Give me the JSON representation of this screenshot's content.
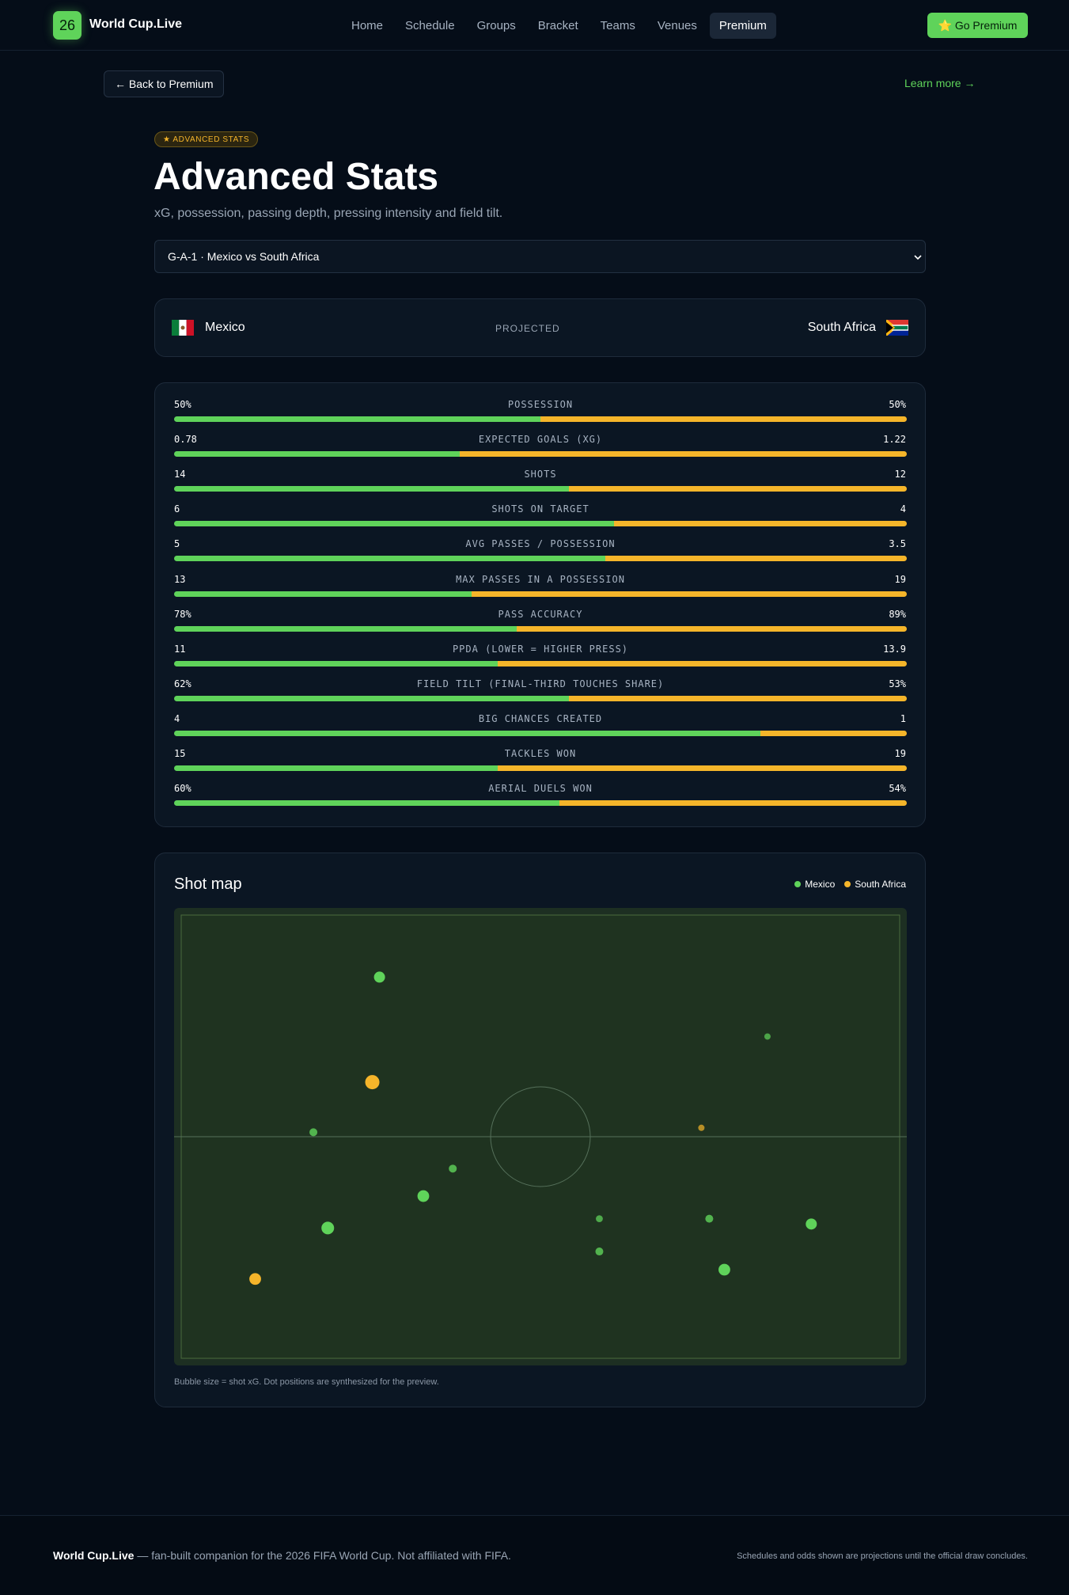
{
  "nav": {
    "badge": "26",
    "brand": "World Cup.Live",
    "links": [
      "Home",
      "Schedule",
      "Groups",
      "Bracket",
      "Teams",
      "Venues",
      "Premium"
    ],
    "cta": "⭐ Go Premium"
  },
  "back": "← Back to Premium",
  "learn_more": "Learn more →",
  "header": {
    "badge": "★ ADVANCED STATS",
    "title": "Advanced Stats",
    "subtitle": "xG, possession, passing depth, pressing intensity and field tilt."
  },
  "match_select": "G-A-1 · Mexico vs South Africa",
  "match": {
    "home": "Mexico",
    "status": "PROJECTED",
    "away": "South Africa"
  },
  "stats": {
    "rows": [
      {
        "label": "POSSESSION",
        "home": 50,
        "away": 50,
        "home_label": "50%",
        "away_label": "50%"
      },
      {
        "label": "EXPECTED GOALS (XG)",
        "home": 0.78,
        "away": 1.22
      },
      {
        "label": "SHOTS",
        "home": 14,
        "away": 12
      },
      {
        "label": "SHOTS ON TARGET",
        "home": 6,
        "away": 4
      },
      {
        "label": "AVG PASSES / POSSESSION",
        "home": 5,
        "away": 3.5
      },
      {
        "label": "MAX PASSES IN A POSSESSION",
        "home": 13,
        "away": 19
      },
      {
        "label": "PASS ACCURACY",
        "home": 78,
        "away": 89,
        "home_label": "78%",
        "away_label": "89%"
      },
      {
        "label": "PPDA (LOWER = HIGHER PRESS)",
        "home": 11,
        "away": 13.9
      },
      {
        "label": "FIELD TILT (FINAL-THIRD TOUCHES SHARE)",
        "home": 62,
        "away": 53,
        "home_label": "62%",
        "away_label": "53%"
      },
      {
        "label": "BIG CHANCES CREATED",
        "home": 4,
        "away": 1
      },
      {
        "label": "TACKLES WON",
        "home": 15,
        "away": 19
      },
      {
        "label": "AERIAL DUELS WON",
        "home": 60,
        "away": 54,
        "home_label": "60%",
        "away_label": "54%"
      }
    ],
    "home_color": "#5fd35a",
    "away_color": "#f5b52a"
  },
  "shot_map": {
    "title": "Shot map",
    "note": "Bubble size = shot xG. Dot positions are synthesized for the preview.",
    "teams": [
      {
        "name": "Mexico",
        "color": "#5fd35a",
        "shots": [
          {
            "x": 27.6,
            "y": 14.0,
            "xg": 0.2
          },
          {
            "x": 18.4,
            "y": 49.0,
            "xg": 0.1
          },
          {
            "x": 37.8,
            "y": 57.2,
            "xg": 0.1
          },
          {
            "x": 33.7,
            "y": 63.4,
            "xg": 0.22
          },
          {
            "x": 20.4,
            "y": 70.6,
            "xg": 0.25
          },
          {
            "x": 58.2,
            "y": 68.5,
            "xg": 0.07
          },
          {
            "x": 58.2,
            "y": 75.9,
            "xg": 0.1
          },
          {
            "x": 73.5,
            "y": 68.5,
            "xg": 0.1
          },
          {
            "x": 75.6,
            "y": 80.0,
            "xg": 0.22
          },
          {
            "x": 87.7,
            "y": 69.7,
            "xg": 0.2
          },
          {
            "x": 81.6,
            "y": 27.4,
            "xg": 0.05
          }
        ]
      },
      {
        "name": "South Africa",
        "color": "#f5b52a",
        "shots": [
          {
            "x": 26.6,
            "y": 37.7,
            "xg": 0.3
          },
          {
            "x": 10.3,
            "y": 82.1,
            "xg": 0.22
          },
          {
            "x": 72.4,
            "y": 48.0,
            "xg": 0.05
          }
        ]
      }
    ]
  },
  "footer": {
    "brand": "World Cup.Live",
    "text": "— fan-built companion for the 2026 FIFA World Cup. Not affiliated with FIFA.",
    "right": "Schedules and odds shown are projections until the official draw concludes."
  }
}
